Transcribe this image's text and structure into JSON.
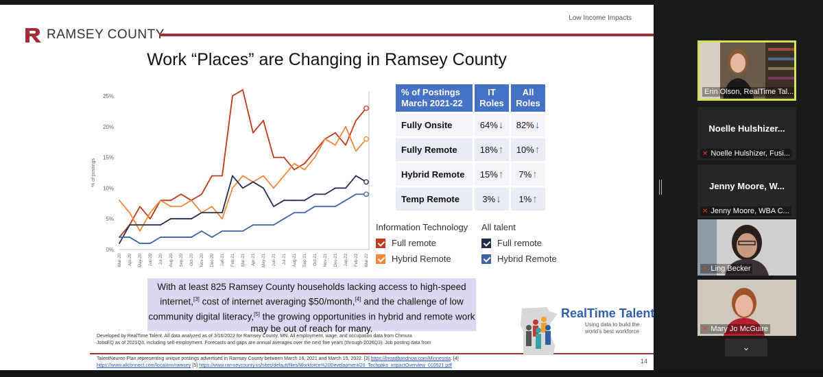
{
  "slide": {
    "header_label": "Low Income Impacts",
    "logo_text": "RAMSEY COUNTY",
    "title": "Work “Places” are Changing in Ramsey County",
    "page_number": "14",
    "brand_color": "#a32c35"
  },
  "chart_data": {
    "type": "line",
    "ylabel": "% of postings",
    "ylim": [
      0,
      25
    ],
    "yticks": [
      "0%",
      "5%",
      "10%",
      "15%",
      "20%",
      "25%"
    ],
    "categories": [
      "Mar-20",
      "Apr-20",
      "May-20",
      "Jun-20",
      "Jul-20",
      "Aug-20",
      "Sep-20",
      "Oct-20",
      "Nov-20",
      "Dec-20",
      "Jan-21",
      "Feb-21",
      "Mar-21",
      "Apr-21",
      "May-21",
      "Jun-21",
      "Jul-21",
      "Aug-21",
      "Sep-21",
      "Oct-21",
      "Nov-21",
      "Dec-21",
      "Jan-22",
      "Feb-22",
      "Mar-22"
    ],
    "series": [
      {
        "name": "Full remote",
        "group": "Information Technology",
        "color": "#c0391b",
        "values": [
          2,
          4,
          7,
          5,
          8,
          8,
          9,
          8,
          9,
          12,
          12,
          25,
          26,
          19,
          21,
          15,
          15,
          13,
          14,
          16,
          18,
          19,
          17,
          21,
          23
        ]
      },
      {
        "name": "Hybrid Remote",
        "group": "Information Technology",
        "color": "#f0893a",
        "values": [
          8,
          6,
          3,
          6,
          8,
          7,
          7,
          8,
          6,
          7,
          5,
          10,
          12,
          11,
          12,
          10,
          12,
          14,
          13,
          15,
          18,
          17,
          20,
          16,
          18
        ]
      },
      {
        "name": "Full remote",
        "group": "All talent",
        "color": "#1f2d4f",
        "values": [
          1,
          4,
          4,
          4,
          4,
          5,
          5,
          5,
          6,
          6,
          6,
          12,
          10,
          11,
          10,
          7,
          8,
          8,
          8,
          9,
          9,
          10,
          10,
          12,
          11
        ]
      },
      {
        "name": "Hybrid Remote",
        "group": "All talent",
        "color": "#3f63a8",
        "values": [
          2,
          2,
          1,
          1,
          2,
          2,
          2,
          2,
          3,
          2,
          3,
          3,
          3,
          4,
          4,
          4,
          5,
          6,
          6,
          7,
          7,
          7,
          8,
          9,
          9
        ]
      }
    ]
  },
  "table": {
    "header": {
      "col0": "% of Postings March 2021-22",
      "col1": "IT Roles",
      "col2": "All Roles"
    },
    "rows": [
      {
        "label": "Fully Onsite",
        "it": "64%",
        "it_arrow": "↓",
        "it_dir": "down",
        "all": "82%",
        "all_arrow": "↓",
        "all_dir": "down"
      },
      {
        "label": "Fully Remote",
        "it": "18%",
        "it_arrow": "↑",
        "it_dir": "up",
        "all": "10%",
        "all_arrow": "↑",
        "all_dir": "up"
      },
      {
        "label": "Hybrid Remote",
        "it": "15%",
        "it_arrow": "↑",
        "it_dir": "up",
        "all": "7%",
        "all_arrow": "↑",
        "all_dir": "up"
      },
      {
        "label": "Temp Remote",
        "it": "3%",
        "it_arrow": "↓",
        "it_dir": "down",
        "all": "1%",
        "all_arrow": "↑",
        "all_dir": "up"
      }
    ]
  },
  "legend": {
    "group_it": "Information Technology",
    "group_all": "All talent",
    "it_full": "Full remote",
    "it_hybrid": "Hybrid Remote",
    "all_full": "Full remote",
    "all_hybrid": "Hybrid Remote",
    "colors": {
      "it_full": "#c0391b",
      "it_hybrid": "#f0893a",
      "all_full": "#1f2d4f",
      "all_hybrid": "#3f63a8"
    }
  },
  "note": {
    "part1": "With at least 825 Ramsey County households lacking access to high-speed internet,",
    "ref3": "[3]",
    "part2": " cost of internet averaging $50/month,",
    "ref4": "[4]",
    "part3": " and the challenge of low community digital literacy,",
    "ref5": "[5]",
    "part4": " the growing opportunities in hybrid and remote work may be out of reach for many."
  },
  "footnote": {
    "line1": "Developed by RealTime Talent. All data analyzed as of 3/16/2022 for Ramsey County, MN. All employment, wage, and occupation data from Chmura",
    "line2": "JobsEQ as of 2021Q3, including self-employment. Forecasts and gaps are annual averages over the next five years (through 2026Q3). Job posting data from"
  },
  "citation": {
    "text1": "TalentNeuron Plan representing unique postings advertised in Ramsey County between March 16, 2021 and March 15, 2022. [3] ",
    "link1": "https://broadbandnow.com/Minnesota",
    "text2": ". [4]",
    "link2": "https://www.allconnect.com/local/mn/ramsey",
    "text3": "  [5] ",
    "link3": "https://www.ramseycounty.us/sites/default/files/Workforce%20Development/20_Techpaks_ImpactOverview_010521.pdf"
  },
  "rt_logo": {
    "name": "RealTime Talent",
    "tagline1": "Using data to build the",
    "tagline2": "world’s best workforce"
  },
  "participants": [
    {
      "label": "Erin Olson, RealTime Tal...",
      "active": true,
      "video": true
    },
    {
      "big_name": "Noelle Hulshizer...",
      "label": "Noelle Hulshizer, Fusi...",
      "muted": true,
      "video": false
    },
    {
      "big_name": "Jenny Moore, W...",
      "label": "Jenny Moore, WBA C...",
      "muted": true,
      "video": false
    },
    {
      "label": "Ling Becker",
      "muted": true,
      "video": true
    },
    {
      "label": "Mary Jo McGuire",
      "muted": true,
      "video": true
    }
  ],
  "controls": {
    "more_icon": "chevron-down-icon"
  }
}
